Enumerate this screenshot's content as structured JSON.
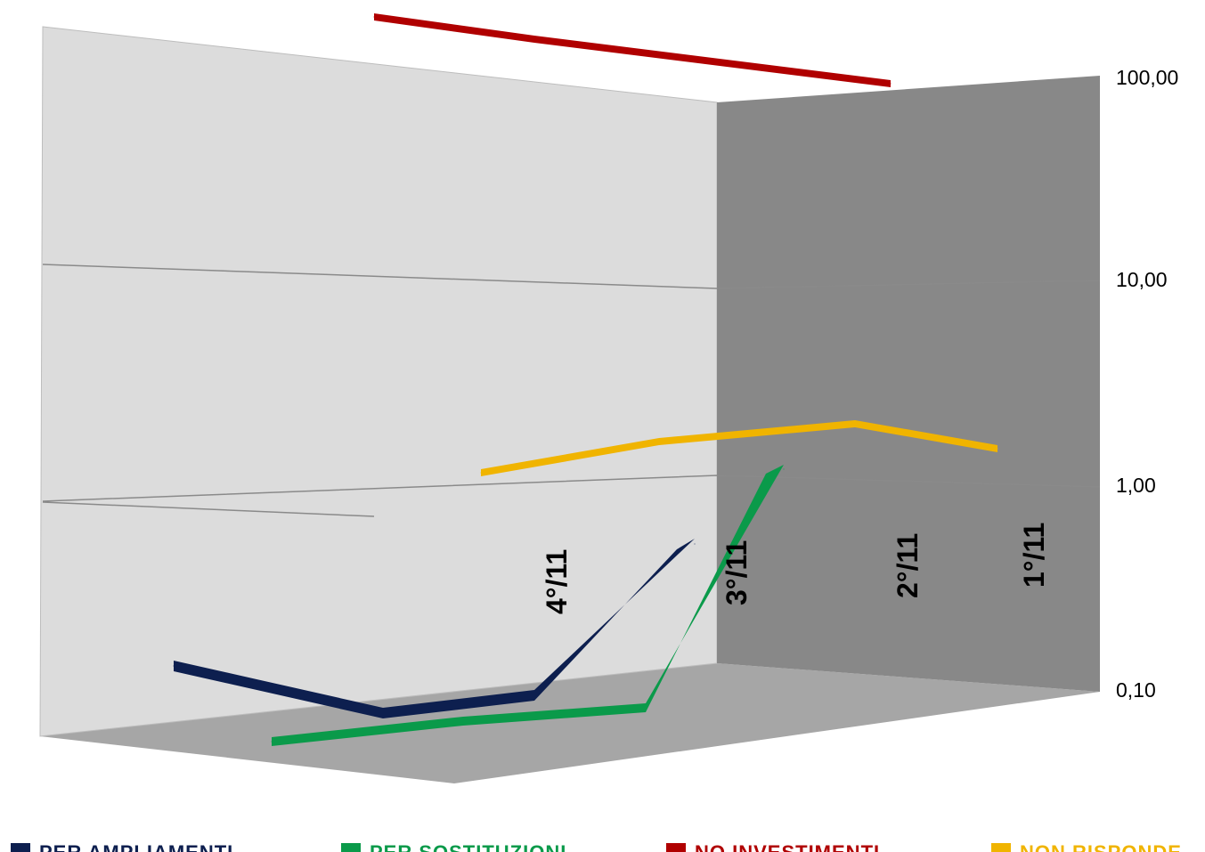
{
  "chart_data": {
    "type": "line",
    "style": "3d-ribbon",
    "y_scale": "log",
    "ylim": [
      0.1,
      100
    ],
    "y_ticks": [
      "100,00",
      "10,00",
      "1,00",
      "0,10"
    ],
    "categories": [
      "4°/11",
      "3°/11",
      "2°/11",
      "1°/11"
    ],
    "grid": true,
    "legend_position": "bottom",
    "series": [
      {
        "name": "PER AMPLIAMENTI",
        "color": "#0d1f4f",
        "values": [
          0.12,
          0.07,
          0.08,
          0.55
        ]
      },
      {
        "name": "PER SOSTITUZIONI",
        "color": "#0a9a4a",
        "values": [
          0.08,
          0.09,
          0.1,
          1.2
        ]
      },
      {
        "name": "NO INVESTIMENTI",
        "color": "#b00000",
        "values": [
          97.0,
          97.5,
          97.6,
          97.9
        ]
      },
      {
        "name": "NON RISPONDE",
        "color": "#f0b400",
        "values": [
          0.9,
          1.6,
          2.0,
          1.4
        ]
      }
    ]
  }
}
